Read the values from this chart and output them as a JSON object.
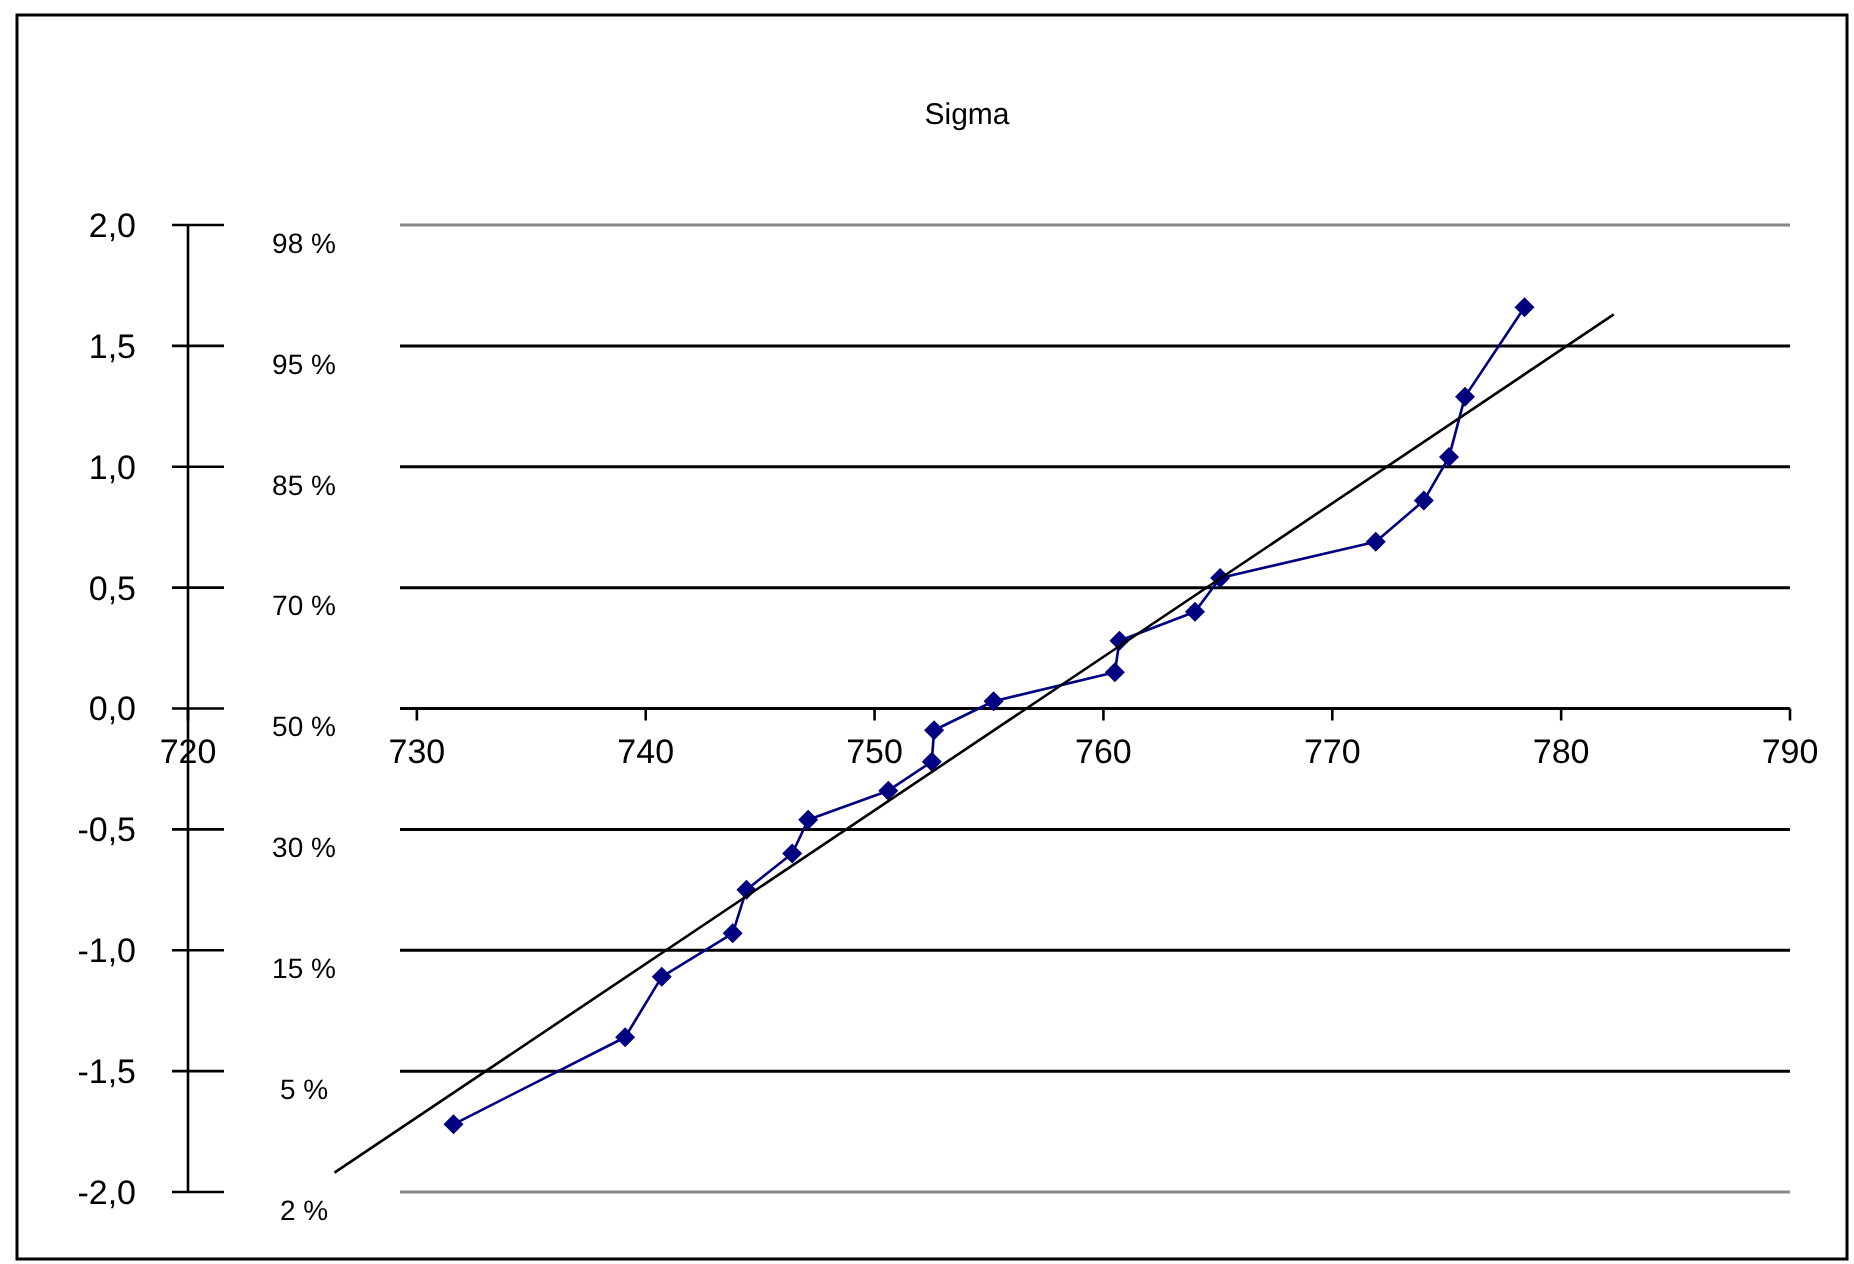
{
  "chart_data": {
    "type": "line",
    "title": "Sigma",
    "xlim": [
      720,
      790
    ],
    "xticks": [
      720,
      730,
      740,
      750,
      760,
      770,
      780,
      790
    ],
    "ylim": [
      -2,
      2
    ],
    "yticks": [
      {
        "value": -2,
        "label": "-2,0"
      },
      {
        "value": -1.5,
        "label": "-1,5"
      },
      {
        "value": -1,
        "label": "-1,0"
      },
      {
        "value": -0.5,
        "label": "-0,5"
      },
      {
        "value": 0,
        "label": "0,0"
      },
      {
        "value": 0.5,
        "label": "0,5"
      },
      {
        "value": 1,
        "label": "1,0"
      },
      {
        "value": 1.5,
        "label": "1,5"
      },
      {
        "value": 2,
        "label": "2,0"
      }
    ],
    "annotations": [
      "98 %",
      "95 %",
      "85 %",
      "70 %",
      "50 %",
      "30 %",
      "15 %",
      "5 %",
      "2 %"
    ],
    "grid": "y",
    "series": [
      {
        "color": "#000080",
        "marker": "diamond",
        "x": [
          731.6,
          739.1,
          740.7,
          743.8,
          744.4,
          746.4,
          747.1,
          750.6,
          752.5,
          752.6,
          755.2,
          760.5,
          760.7,
          764.0,
          765.1,
          771.9,
          774.0,
          775.1,
          775.8,
          778.4
        ],
        "values": [
          -1.72,
          -1.36,
          -1.11,
          -0.93,
          -0.75,
          -0.6,
          -0.46,
          -0.34,
          -0.22,
          -0.09,
          0.03,
          0.15,
          0.28,
          0.4,
          0.54,
          0.69,
          0.86,
          1.04,
          1.29,
          1.66
        ]
      },
      {
        "color": "#000000",
        "marker": "none",
        "x": [
          726.4,
          782.3
        ],
        "values": [
          -1.92,
          1.63
        ]
      }
    ]
  }
}
